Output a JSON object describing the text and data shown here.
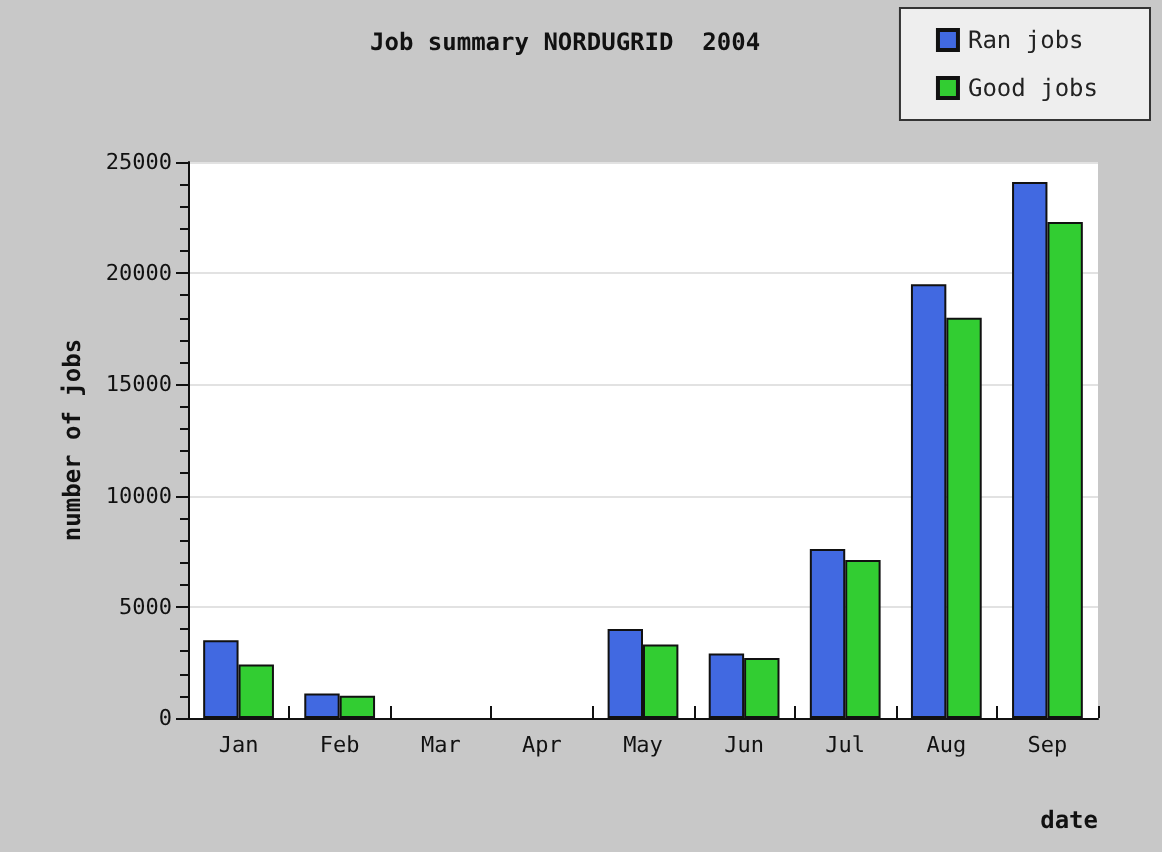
{
  "chart_data": {
    "type": "bar",
    "title": "Job summary NORDUGRID  2004",
    "xlabel": "date",
    "ylabel": "number of jobs",
    "categories": [
      "Jan",
      "Feb",
      "Mar",
      "Apr",
      "May",
      "Jun",
      "Jul",
      "Aug",
      "Sep"
    ],
    "series": [
      {
        "name": "Ran jobs",
        "color": "#4169e1",
        "values": [
          3500,
          1100,
          0,
          0,
          4000,
          2900,
          7600,
          19500,
          24100
        ]
      },
      {
        "name": "Good jobs",
        "color": "#32cd32",
        "values": [
          2400,
          1000,
          0,
          0,
          3300,
          2700,
          7100,
          18000,
          22300
        ]
      }
    ],
    "ylim": [
      0,
      25000
    ],
    "yticks": [
      0,
      5000,
      10000,
      15000,
      20000,
      25000
    ],
    "grid": "y",
    "legend": "top right"
  }
}
